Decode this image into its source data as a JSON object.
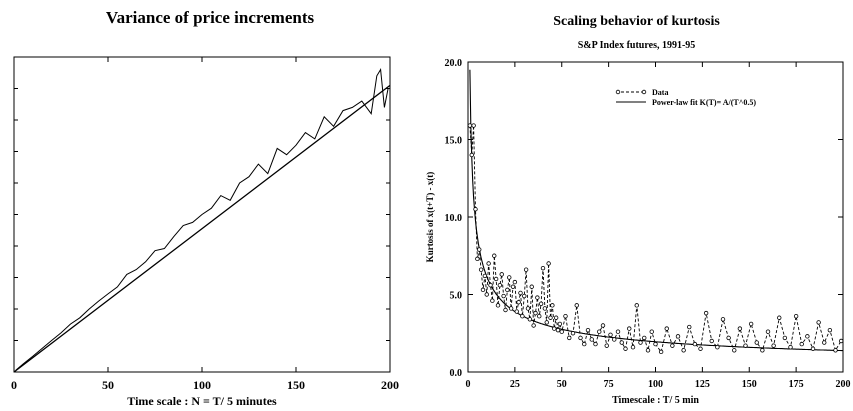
{
  "chart_data": [
    {
      "type": "line",
      "title": "Variance of price increments",
      "xlabel": "Time scale : N = T/ 5 minutes",
      "ylabel": "",
      "xlim": [
        0,
        200
      ],
      "ylim": [
        0,
        1.0
      ],
      "xticks": [
        0,
        50,
        100,
        150,
        200
      ],
      "yticks_labeled": false,
      "grid": false,
      "series": [
        {
          "style": "solid-noisy",
          "x": [
            1,
            5,
            10,
            15,
            20,
            25,
            30,
            35,
            40,
            45,
            50,
            55,
            60,
            65,
            70,
            75,
            80,
            85,
            90,
            95,
            100,
            105,
            110,
            115,
            120,
            125,
            130,
            135,
            140,
            145,
            150,
            155,
            160,
            165,
            170,
            175,
            180,
            185,
            190,
            193,
            195,
            197,
            199
          ],
          "y": [
            0.006,
            0.026,
            0.05,
            0.075,
            0.1,
            0.124,
            0.152,
            0.172,
            0.2,
            0.225,
            0.248,
            0.27,
            0.31,
            0.325,
            0.35,
            0.385,
            0.392,
            0.43,
            0.465,
            0.475,
            0.5,
            0.52,
            0.56,
            0.545,
            0.6,
            0.62,
            0.66,
            0.63,
            0.71,
            0.69,
            0.72,
            0.76,
            0.74,
            0.81,
            0.78,
            0.83,
            0.84,
            0.86,
            0.82,
            0.94,
            0.96,
            0.84,
            0.9
          ]
        },
        {
          "style": "solid-fit",
          "x": [
            0,
            200
          ],
          "y": [
            0,
            0.91
          ]
        }
      ]
    },
    {
      "type": "line",
      "title": "Scaling behavior of kurtosis",
      "subtitle": "S&P Index futures, 1991-95",
      "xlabel": "Timescale : T/ 5 min",
      "ylabel": "Kurtosis of  x(t+T) - x(t)",
      "xlim": [
        0,
        200
      ],
      "ylim": [
        0,
        20
      ],
      "xticks": [
        0,
        25,
        50,
        75,
        100,
        125,
        150,
        175,
        200
      ],
      "yticks": [
        "0.0",
        "5.0",
        "10.0",
        "15.0",
        "20.0"
      ],
      "grid": false,
      "legend_position": "top-right",
      "series": [
        {
          "name": "Data",
          "style": "dashed-circles",
          "x": [
            1,
            2,
            3,
            4,
            5,
            6,
            7,
            8,
            9,
            10,
            11,
            12,
            13,
            14,
            15,
            16,
            17,
            18,
            19,
            20,
            21,
            22,
            23,
            24,
            25,
            26,
            27,
            28,
            29,
            30,
            31,
            32,
            33,
            34,
            35,
            36,
            37,
            38,
            39,
            40,
            41,
            42,
            43,
            44,
            45,
            46,
            47,
            48,
            49,
            50,
            52,
            54,
            56,
            58,
            60,
            62,
            64,
            66,
            68,
            70,
            72,
            74,
            76,
            78,
            80,
            82,
            84,
            86,
            88,
            90,
            92,
            94,
            96,
            98,
            100,
            103,
            106,
            109,
            112,
            115,
            118,
            121,
            124,
            127,
            130,
            133,
            136,
            139,
            142,
            145,
            148,
            151,
            154,
            157,
            160,
            163,
            166,
            169,
            172,
            175,
            178,
            181,
            184,
            187,
            190,
            193,
            196,
            199
          ],
          "y": [
            15.9,
            14.0,
            15.9,
            10.5,
            7.3,
            7.9,
            6.6,
            5.3,
            6.2,
            5.0,
            7.0,
            5.6,
            4.6,
            7.5,
            6.0,
            4.3,
            5.6,
            6.3,
            4.9,
            4.0,
            5.3,
            6.1,
            4.1,
            5.5,
            5.8,
            3.9,
            4.5,
            5.1,
            3.6,
            4.9,
            6.6,
            4.1,
            3.4,
            5.5,
            3.0,
            3.8,
            4.8,
            3.6,
            4.4,
            6.7,
            4.1,
            3.2,
            7.0,
            3.5,
            4.3,
            2.8,
            3.5,
            2.7,
            3.1,
            2.6,
            3.6,
            2.2,
            2.5,
            4.3,
            2.2,
            1.8,
            2.7,
            2.1,
            1.8,
            2.6,
            3.0,
            1.7,
            2.4,
            2.1,
            2.6,
            1.9,
            1.5,
            2.8,
            1.6,
            4.3,
            1.9,
            2.2,
            1.4,
            2.6,
            1.8,
            1.3,
            2.8,
            1.7,
            2.3,
            1.4,
            2.9,
            1.8,
            1.5,
            3.8,
            2.0,
            1.6,
            3.4,
            2.2,
            1.4,
            2.8,
            1.7,
            3.1,
            1.9,
            1.4,
            2.6,
            1.7,
            3.5,
            2.2,
            1.6,
            3.6,
            1.8,
            2.3,
            1.5,
            3.2,
            1.9,
            2.7,
            1.4,
            2.0
          ]
        },
        {
          "name": "Power-law fit K(T)= A/(T^0.5)",
          "style": "solid",
          "A": 19.5,
          "exponent": 0.5
        }
      ]
    }
  ]
}
